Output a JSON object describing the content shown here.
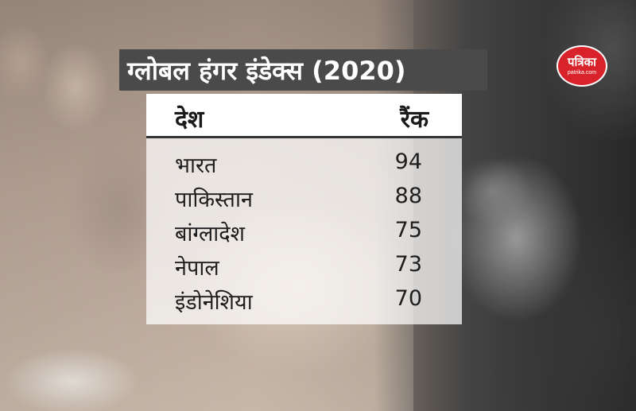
{
  "title": "ग्लोबल हंगर इंडेक्स (2020)",
  "table": {
    "header_country": "देश",
    "header_rank": "रैंक",
    "rows": [
      {
        "country": "भारत",
        "rank": "94"
      },
      {
        "country": "पाकिस्तान",
        "rank": "88"
      },
      {
        "country": "बांग्लादेश",
        "rank": "75"
      },
      {
        "country": "नेपाल",
        "rank": "73"
      },
      {
        "country": "इंडोनेशिया",
        "rank": "70"
      }
    ]
  },
  "logo": {
    "main": "पत्रिका",
    "sub": "patrika.com",
    "color": "#d9232a"
  },
  "colors": {
    "banner": "#4a4a4a",
    "text": "#1e1e1e"
  }
}
